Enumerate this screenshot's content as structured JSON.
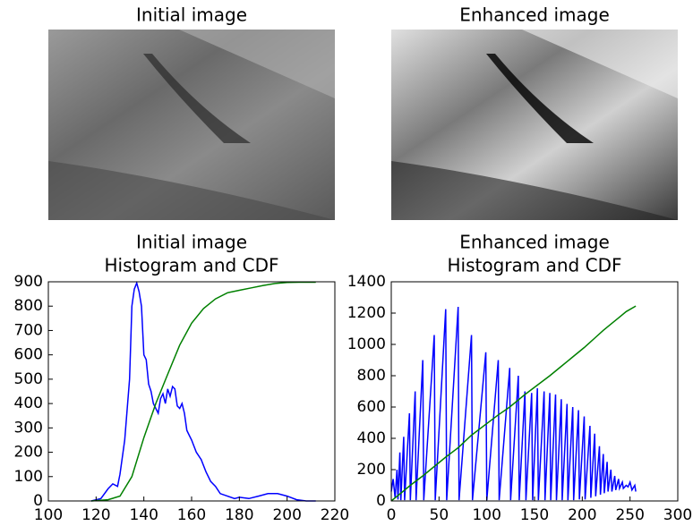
{
  "chart_data": [
    {
      "type": "image",
      "title": "Initial image"
    },
    {
      "type": "image",
      "title": "Enhanced image"
    },
    {
      "type": "line",
      "title": "Initial image",
      "subtitle": "Histogram and CDF",
      "xlim": [
        100,
        220
      ],
      "xticks": [
        100,
        120,
        140,
        160,
        180,
        200,
        220
      ],
      "ylim": [
        0,
        900
      ],
      "yticks": [
        0,
        100,
        200,
        300,
        400,
        500,
        600,
        700,
        800,
        900
      ],
      "series": [
        {
          "color": "#0000ff",
          "x": [
            118,
            122,
            125,
            127,
            129,
            130,
            132,
            134,
            135,
            136,
            137,
            138,
            139,
            140,
            141,
            142,
            143,
            144,
            145,
            146,
            147,
            148,
            149,
            150,
            151,
            152,
            153,
            154,
            155,
            156,
            157,
            158,
            159,
            160,
            162,
            164,
            166,
            168,
            170,
            172,
            175,
            178,
            180,
            184,
            188,
            192,
            196,
            200,
            204,
            208,
            212
          ],
          "values": [
            0,
            10,
            50,
            70,
            60,
            110,
            250,
            500,
            800,
            870,
            895,
            860,
            800,
            600,
            580,
            480,
            450,
            400,
            380,
            360,
            420,
            440,
            400,
            460,
            430,
            470,
            460,
            390,
            380,
            400,
            360,
            290,
            270,
            250,
            200,
            170,
            120,
            80,
            60,
            30,
            20,
            10,
            15,
            10,
            20,
            30,
            30,
            20,
            5,
            0,
            0
          ]
        },
        {
          "color": "#008000",
          "x": [
            118,
            125,
            130,
            135,
            140,
            145,
            150,
            155,
            160,
            165,
            170,
            175,
            180,
            185,
            190,
            195,
            200,
            205,
            212
          ],
          "values": [
            0,
            5,
            20,
            100,
            260,
            400,
            520,
            640,
            730,
            790,
            830,
            855,
            865,
            875,
            885,
            893,
            897,
            898,
            898
          ]
        }
      ]
    },
    {
      "type": "line",
      "title": "Enhanced image",
      "subtitle": "Histogram and CDF",
      "xlim": [
        0,
        300
      ],
      "xticks": [
        0,
        50,
        100,
        150,
        200,
        250,
        300
      ],
      "ylim": [
        0,
        1400
      ],
      "yticks": [
        0,
        200,
        400,
        600,
        800,
        1000,
        1200,
        1400
      ],
      "series": [
        {
          "color": "#0000ff",
          "x": [
            0,
            2,
            4,
            6,
            7,
            9,
            10,
            13,
            14,
            19,
            20,
            25,
            26,
            33,
            34,
            45,
            46,
            57,
            58,
            70,
            71,
            84,
            85,
            99,
            100,
            112,
            113,
            124,
            125,
            133,
            134,
            140,
            141,
            147,
            148,
            153,
            154,
            160,
            161,
            166,
            167,
            172,
            173,
            178,
            179,
            184,
            185,
            190,
            191,
            196,
            197,
            202,
            203,
            208,
            209,
            213,
            214,
            218,
            219,
            222,
            223,
            226,
            227,
            230,
            231,
            234,
            235,
            238,
            239,
            242,
            243,
            246,
            248,
            250,
            252,
            255,
            256
          ],
          "values": [
            60,
            140,
            20,
            200,
            10,
            310,
            5,
            410,
            5,
            560,
            5,
            700,
            5,
            900,
            5,
            1060,
            5,
            1225,
            5,
            1240,
            5,
            1060,
            5,
            950,
            5,
            900,
            5,
            850,
            5,
            800,
            5,
            700,
            5,
            690,
            5,
            720,
            5,
            700,
            5,
            690,
            5,
            680,
            5,
            650,
            5,
            620,
            5,
            600,
            5,
            580,
            10,
            540,
            10,
            480,
            20,
            430,
            30,
            350,
            40,
            300,
            50,
            250,
            60,
            200,
            60,
            160,
            70,
            140,
            80,
            120,
            80,
            100,
            90,
            120,
            70,
            100,
            60
          ]
        },
        {
          "color": "#008000",
          "x": [
            0,
            10,
            20,
            33,
            45,
            57,
            70,
            84,
            99,
            112,
            124,
            140,
            153,
            166,
            178,
            190,
            202,
            213,
            222,
            230,
            238,
            246,
            256
          ],
          "values": [
            0,
            50,
            100,
            160,
            220,
            280,
            340,
            420,
            490,
            550,
            600,
            680,
            740,
            800,
            860,
            920,
            980,
            1040,
            1090,
            1130,
            1170,
            1210,
            1245
          ]
        }
      ]
    }
  ]
}
